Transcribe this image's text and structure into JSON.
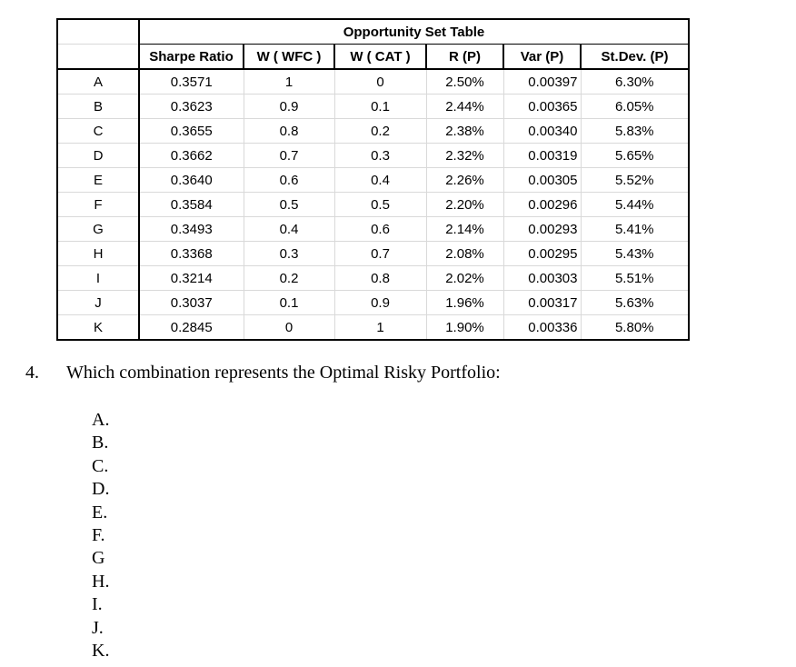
{
  "colors": {
    "background": "#ffffff",
    "grid_line": "#d9d9d9",
    "table_border": "#000000",
    "text": "#000000"
  },
  "table": {
    "title": "Opportunity Set Table",
    "columns": [
      "Sharpe Ratio",
      "W ( WFC )",
      "W ( CAT )",
      "R (P)",
      "Var (P)",
      "St.Dev. (P)"
    ],
    "rows": [
      {
        "label": "A",
        "values": [
          "0.3571",
          "1",
          "0",
          "2.50%",
          "0.00397",
          "6.30%"
        ]
      },
      {
        "label": "B",
        "values": [
          "0.3623",
          "0.9",
          "0.1",
          "2.44%",
          "0.00365",
          "6.05%"
        ]
      },
      {
        "label": "C",
        "values": [
          "0.3655",
          "0.8",
          "0.2",
          "2.38%",
          "0.00340",
          "5.83%"
        ]
      },
      {
        "label": "D",
        "values": [
          "0.3662",
          "0.7",
          "0.3",
          "2.32%",
          "0.00319",
          "5.65%"
        ]
      },
      {
        "label": "E",
        "values": [
          "0.3640",
          "0.6",
          "0.4",
          "2.26%",
          "0.00305",
          "5.52%"
        ]
      },
      {
        "label": "F",
        "values": [
          "0.3584",
          "0.5",
          "0.5",
          "2.20%",
          "0.00296",
          "5.44%"
        ]
      },
      {
        "label": "G",
        "values": [
          "0.3493",
          "0.4",
          "0.6",
          "2.14%",
          "0.00293",
          "5.41%"
        ]
      },
      {
        "label": "H",
        "values": [
          "0.3368",
          "0.3",
          "0.7",
          "2.08%",
          "0.00295",
          "5.43%"
        ]
      },
      {
        "label": "I",
        "values": [
          "0.3214",
          "0.2",
          "0.8",
          "2.02%",
          "0.00303",
          "5.51%"
        ]
      },
      {
        "label": "J",
        "values": [
          "0.3037",
          "0.1",
          "0.9",
          "1.96%",
          "0.00317",
          "5.63%"
        ]
      },
      {
        "label": "K",
        "values": [
          "0.2845",
          "0",
          "1",
          "1.90%",
          "0.00336",
          "5.80%"
        ]
      }
    ]
  },
  "question": {
    "number": "4.",
    "text": "Which combination represents the Optimal Risky Portfolio:"
  },
  "options": [
    "A.",
    "B.",
    "C.",
    "D.",
    "E.",
    "F.",
    "G",
    "H.",
    "I.",
    "J.",
    "K."
  ]
}
